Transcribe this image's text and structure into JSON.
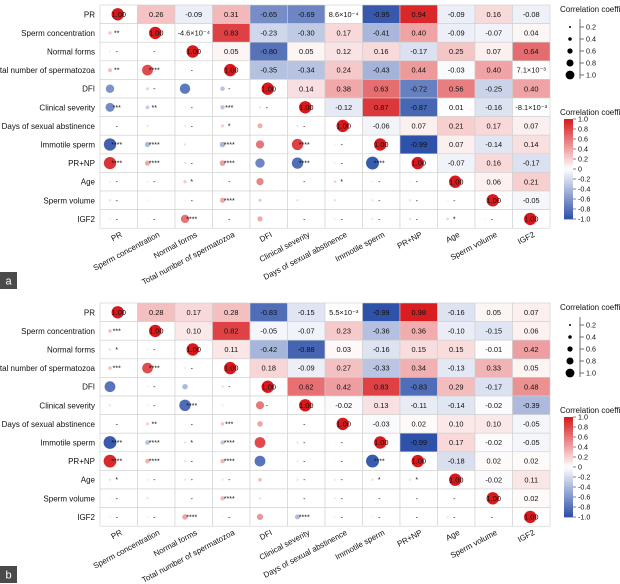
{
  "chart_data": [
    {
      "type": "heatmap",
      "panel": "a",
      "variables": [
        "PR",
        "Sperm concentration",
        "Normal forms",
        "Total number of spermatozoa",
        "DFI",
        "Clinical severity",
        "Days of sexual abstinence",
        "Immotile sperm",
        "PR+NP",
        "Age",
        "Sperm volume",
        "IGF2"
      ],
      "upper": [
        [
          null,
          "0.26",
          "-0.09",
          "0.31",
          "-0.65",
          "-0.69",
          "8.6×10⁻⁴",
          "-0.95",
          "0.94",
          "-0.09",
          "0.16",
          "-0.08"
        ],
        [
          null,
          null,
          "-4.6×10⁻⁴",
          "0.83",
          "-0.23",
          "-0.30",
          "0.17",
          "-0.41",
          "0.40",
          "-0.09",
          "-0.07",
          "0.04"
        ],
        [
          null,
          null,
          null,
          "0.05",
          "-0.80",
          "0.05",
          "0.12",
          "0.16",
          "-0.17",
          "0.25",
          "0.07",
          "0.64"
        ],
        [
          null,
          null,
          null,
          null,
          "-0.35",
          "-0.34",
          "0.24",
          "-0.43",
          "0.44",
          "-0.03",
          "0.40",
          "7.1×10⁻³"
        ],
        [
          null,
          null,
          null,
          null,
          null,
          "0.14",
          "0.38",
          "0.63",
          "-0.72",
          "0.56",
          "-0.25",
          "0.40"
        ],
        [
          null,
          null,
          null,
          null,
          null,
          null,
          "-0.12",
          "0.87",
          "-0.87",
          "0.01",
          "-0.16",
          "-8.1×10⁻³"
        ],
        [
          null,
          null,
          null,
          null,
          null,
          null,
          null,
          "-0.06",
          "0.07",
          "0.21",
          "0.17",
          "0.07"
        ],
        [
          null,
          null,
          null,
          null,
          null,
          null,
          null,
          null,
          "-0.99",
          "0.07",
          "-0.14",
          "0.14"
        ],
        [
          null,
          null,
          null,
          null,
          null,
          null,
          null,
          null,
          null,
          "-0.07",
          "0.16",
          "-0.17"
        ],
        [
          null,
          null,
          null,
          null,
          null,
          null,
          null,
          null,
          null,
          null,
          "0.06",
          "0.21"
        ],
        [
          null,
          null,
          null,
          null,
          null,
          null,
          null,
          null,
          null,
          null,
          null,
          "-0.05"
        ],
        [
          null,
          null,
          null,
          null,
          null,
          null,
          null,
          null,
          null,
          null,
          null,
          null
        ]
      ],
      "lower": [
        [
          null,
          null,
          null,
          null,
          null,
          null,
          null,
          null,
          null,
          null,
          null,
          null
        ],
        [
          "**",
          null,
          null,
          null,
          null,
          null,
          null,
          null,
          null,
          null,
          null,
          null
        ],
        [
          "-",
          "-",
          null,
          null,
          null,
          null,
          null,
          null,
          null,
          null,
          null,
          null
        ],
        [
          "**",
          "****",
          "-",
          null,
          null,
          null,
          null,
          null,
          null,
          null,
          null,
          null
        ],
        [
          "",
          "-",
          "",
          "-",
          null,
          null,
          null,
          null,
          null,
          null,
          null,
          null
        ],
        [
          "***",
          "**",
          "-",
          "***",
          "-",
          null,
          null,
          null,
          null,
          null,
          null,
          null
        ],
        [
          "-",
          "",
          "-",
          "*",
          "",
          "-",
          null,
          null,
          null,
          null,
          null,
          null
        ],
        [
          "****",
          "****",
          "",
          "****",
          "",
          "****",
          "-",
          null,
          null,
          null,
          null,
          null
        ],
        [
          "****",
          "****",
          "-",
          "****",
          "",
          "****",
          "-",
          "****",
          null,
          null,
          null,
          null
        ],
        [
          "-",
          "-",
          "*",
          "-",
          "",
          "-",
          "*",
          "-",
          "-",
          null,
          null,
          null
        ],
        [
          "-",
          "",
          "-",
          "****",
          "",
          "",
          "",
          "-",
          "-",
          "-",
          null,
          null
        ],
        [
          "-",
          "-",
          "****",
          "-",
          "",
          "-",
          "-",
          "-",
          "-",
          "*",
          "-",
          null
        ]
      ],
      "legend": {
        "size_title": "Correlation coefficient",
        "size_ticks": [
          "0.2",
          "0.4",
          "0.6",
          "0.8",
          "1.0"
        ],
        "color_title": "Correlation coefficient",
        "color_ticks": [
          "1.0",
          "0.8",
          "0.6",
          "0.4",
          "0.2",
          "0",
          "-0.2",
          "-0.4",
          "-0.6",
          "-0.8",
          "-1.0"
        ]
      }
    },
    {
      "type": "heatmap",
      "panel": "b",
      "variables": [
        "PR",
        "Sperm concentration",
        "Normal forms",
        "Total number of spermatozoa",
        "DFI",
        "Clinical severity",
        "Days of sexual abstinence",
        "Immotile sperm",
        "PR+NP",
        "Age",
        "Sperm volume",
        "IGF2"
      ],
      "upper": [
        [
          null,
          "0.28",
          "0.17",
          "0.28",
          "-0.83",
          "-0.15",
          "5.5×10⁻³",
          "-0.99",
          "0.98",
          "-0.16",
          "0.05",
          "0.07"
        ],
        [
          null,
          null,
          "0.10",
          "0.82",
          "-0.05",
          "-0.07",
          "0.23",
          "-0.36",
          "0.36",
          "-0.10",
          "-0.15",
          "0.06"
        ],
        [
          null,
          null,
          null,
          "0.11",
          "-0.42",
          "-0.88",
          "0.03",
          "-0.16",
          "0.15",
          "0.15",
          "-0.01",
          "0.42"
        ],
        [
          null,
          null,
          null,
          null,
          "0.18",
          "-0.09",
          "0.27",
          "-0.33",
          "0.34",
          "-0.13",
          "0.33",
          "0.05"
        ],
        [
          null,
          null,
          null,
          null,
          null,
          "0.62",
          "0.42",
          "0.83",
          "-0.83",
          "0.29",
          "-0.17",
          "0.48"
        ],
        [
          null,
          null,
          null,
          null,
          null,
          null,
          "-0.02",
          "0.13",
          "-0.11",
          "-0.14",
          "-0.02",
          "-0.39"
        ],
        [
          null,
          null,
          null,
          null,
          null,
          null,
          null,
          "-0.03",
          "0.02",
          "0.10",
          "0.10",
          "-0.05"
        ],
        [
          null,
          null,
          null,
          null,
          null,
          null,
          null,
          null,
          "-0.99",
          "0.17",
          "-0.02",
          "-0.05"
        ],
        [
          null,
          null,
          null,
          null,
          null,
          null,
          null,
          null,
          null,
          "-0.18",
          "0.02",
          "0.02"
        ],
        [
          null,
          null,
          null,
          null,
          null,
          null,
          null,
          null,
          null,
          null,
          "-0.02",
          "0.11"
        ],
        [
          null,
          null,
          null,
          null,
          null,
          null,
          null,
          null,
          null,
          null,
          null,
          "0.02"
        ],
        [
          null,
          null,
          null,
          null,
          null,
          null,
          null,
          null,
          null,
          null,
          null,
          null
        ]
      ],
      "lower": [
        [
          null,
          null,
          null,
          null,
          null,
          null,
          null,
          null,
          null,
          null,
          null,
          null
        ],
        [
          "***",
          null,
          null,
          null,
          null,
          null,
          null,
          null,
          null,
          null,
          null,
          null
        ],
        [
          "*",
          "-",
          null,
          null,
          null,
          null,
          null,
          null,
          null,
          null,
          null,
          null
        ],
        [
          "***",
          "****",
          "-",
          null,
          null,
          null,
          null,
          null,
          null,
          null,
          null,
          null
        ],
        [
          "",
          "-",
          "",
          "-",
          null,
          null,
          null,
          null,
          null,
          null,
          null,
          null
        ],
        [
          "",
          "-",
          "****",
          "",
          "-",
          null,
          null,
          null,
          null,
          null,
          null,
          null
        ],
        [
          "-",
          "**",
          "-",
          "***",
          "",
          "-",
          null,
          null,
          null,
          null,
          null,
          null
        ],
        [
          "****",
          "****",
          "*",
          "****",
          "",
          "-",
          "-",
          null,
          null,
          null,
          null,
          null
        ],
        [
          "****",
          "****",
          "-",
          "****",
          "",
          "-",
          "-",
          "****",
          null,
          null,
          null,
          null
        ],
        [
          "*",
          "-",
          "-",
          "-",
          "",
          "-",
          "-",
          "*",
          "*",
          null,
          null,
          null
        ],
        [
          "-",
          "",
          "-",
          "****",
          "",
          "-",
          "-",
          "-",
          "-",
          "-",
          null,
          null
        ],
        [
          "-",
          "-",
          "****",
          "-",
          "",
          "****",
          "-",
          "-",
          "-",
          "-",
          "-",
          null
        ]
      ],
      "legend": {
        "size_title": "Correlation coefficient",
        "size_ticks": [
          "0.2",
          "0.4",
          "0.6",
          "0.8",
          "1.0"
        ],
        "color_title": "Correlation coefficient",
        "color_ticks": [
          "1.0",
          "0.8",
          "0.6",
          "0.4",
          "0.2",
          "0",
          "-0.2",
          "-0.4",
          "-0.6",
          "-0.8",
          "-1.0"
        ]
      }
    }
  ],
  "diag_values": [
    "1.00",
    "1.00",
    "1.00",
    "1.00",
    "1.00",
    "1.00",
    "1.00",
    "1.00",
    "1.00",
    "1.00",
    "1.00",
    "1.00"
  ],
  "panel_labels": [
    "a",
    "b"
  ],
  "colors": {
    "positive": "#d7191c",
    "negative": "#2c4fa8",
    "neutral": "#ffffff",
    "grid": "#cfcfcf",
    "panel_tag_bg": "#4a4a4a"
  }
}
